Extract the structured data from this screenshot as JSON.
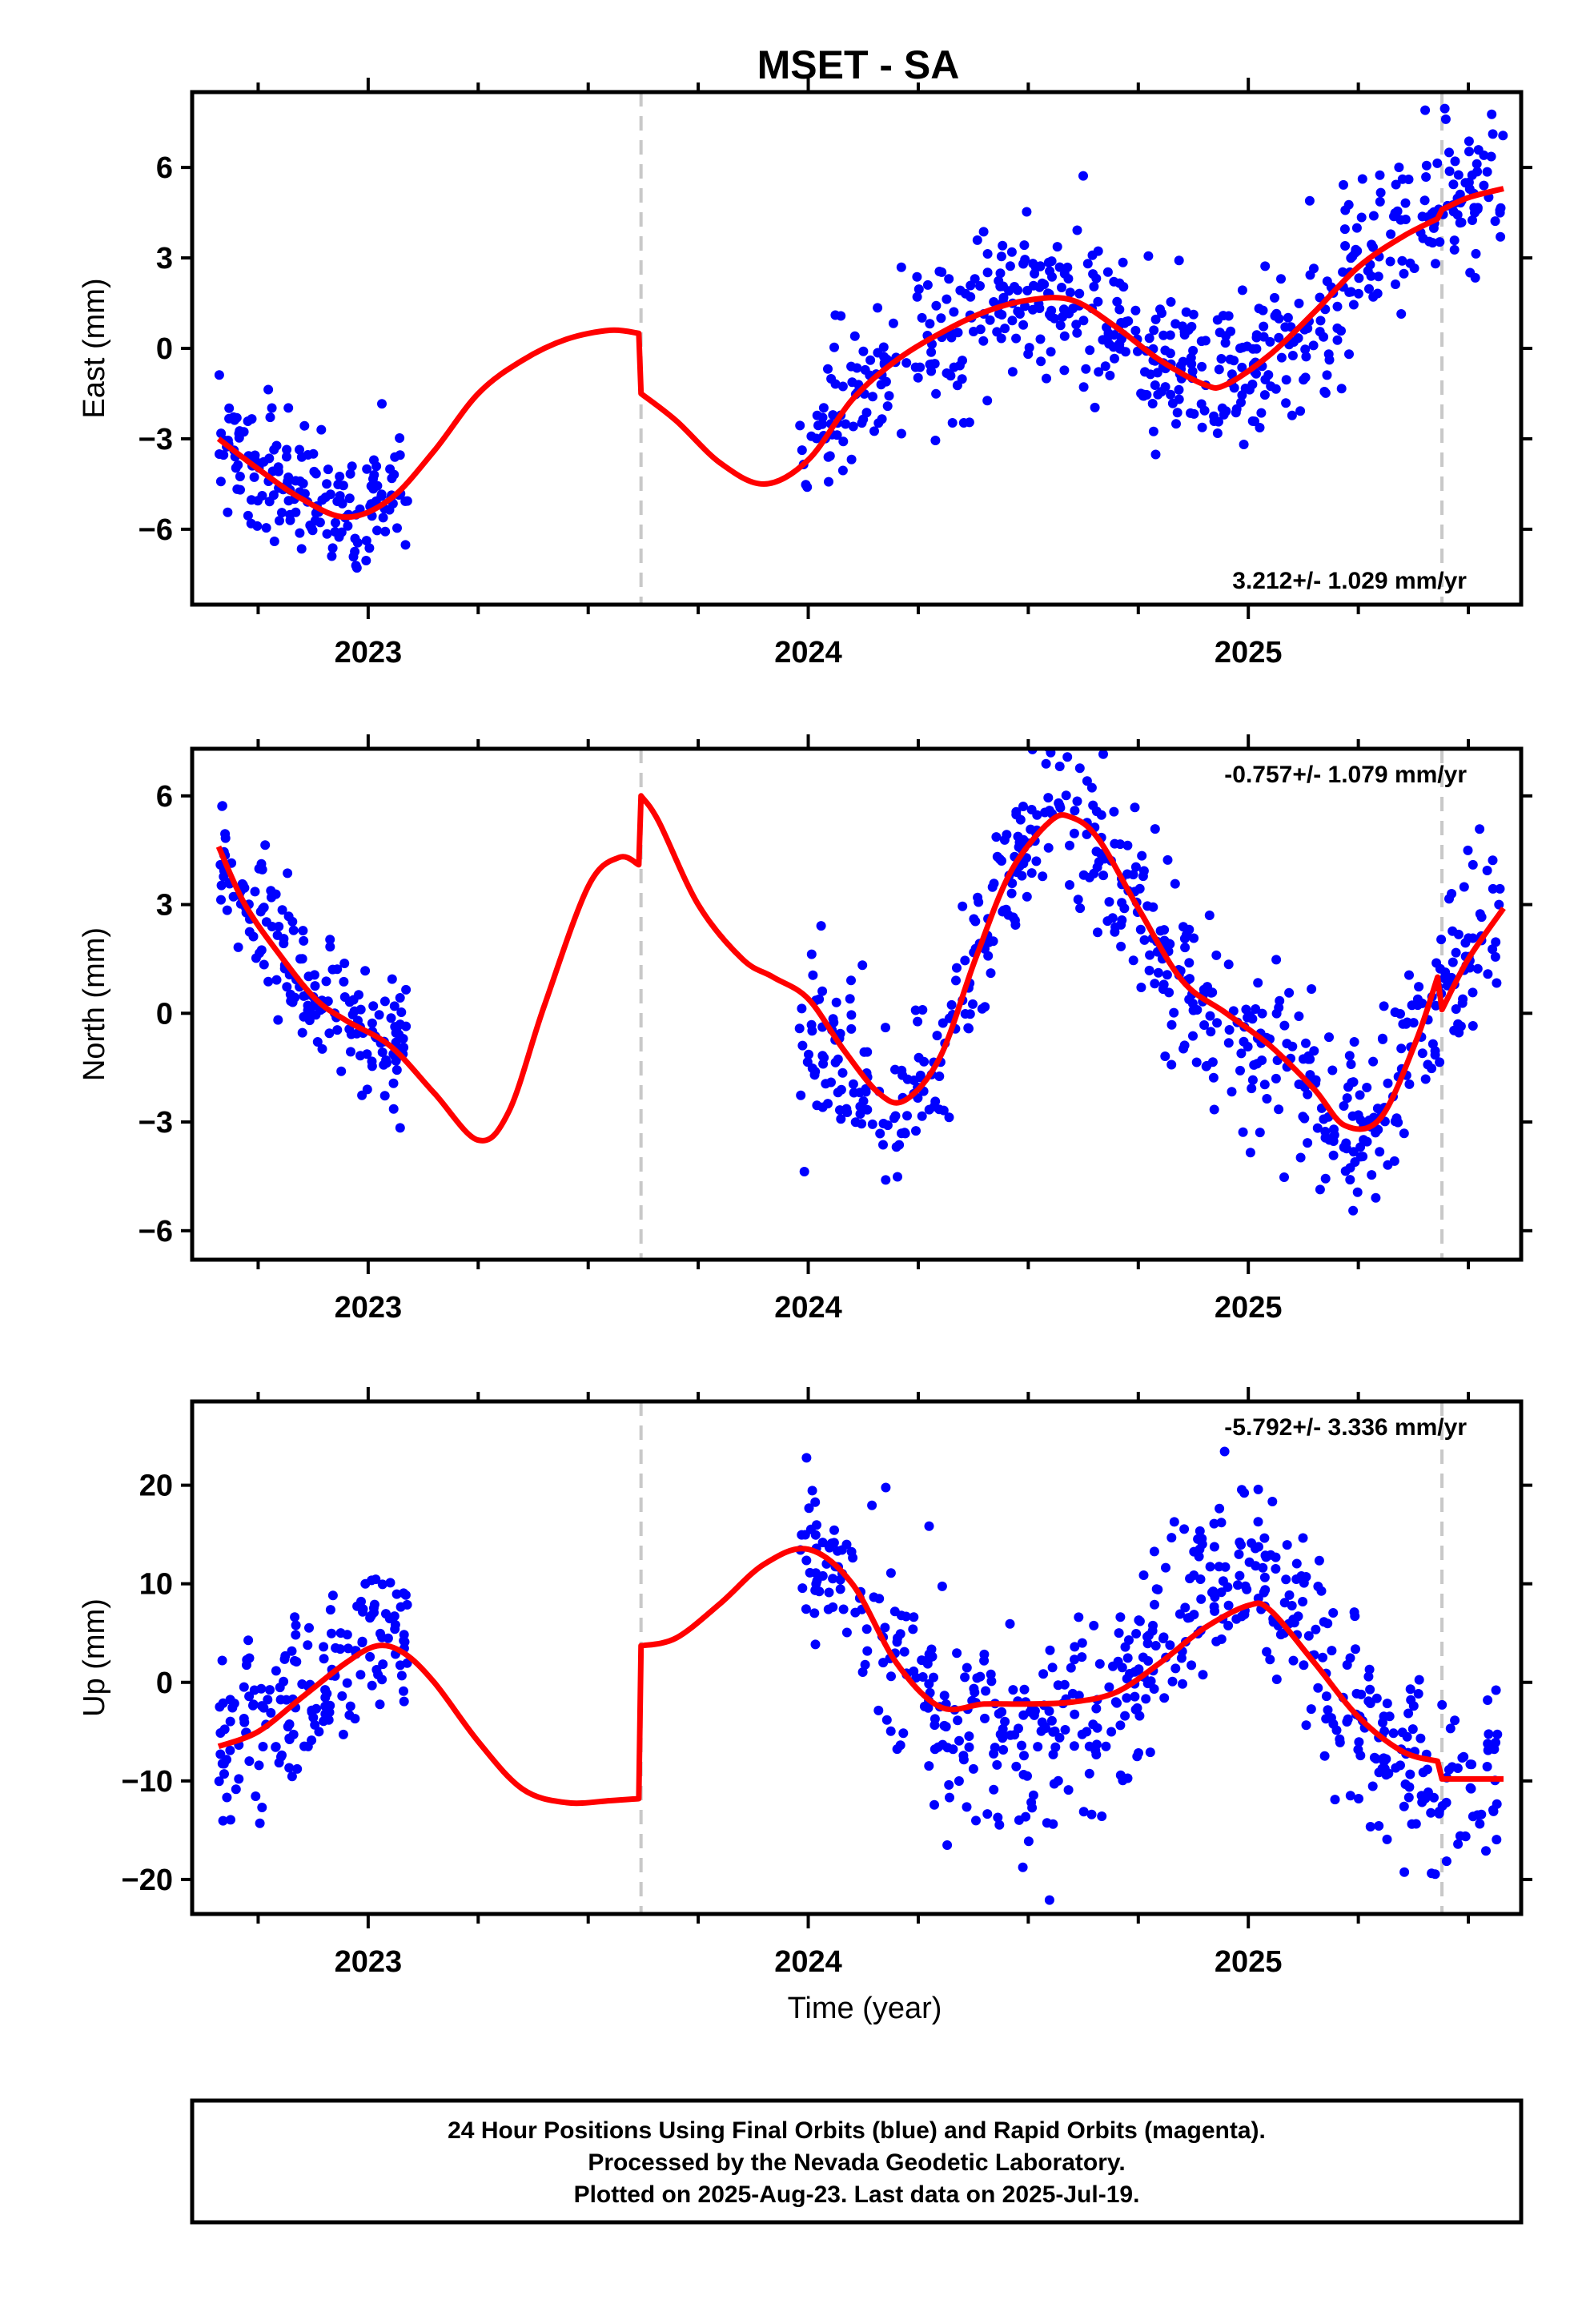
{
  "title": "MSET - SA",
  "footer": {
    "lines": [
      "24 Hour Positions Using Final Orbits (blue) and Rapid Orbits (magenta).",
      "Processed by the Nevada Geodetic Laboratory.",
      "Plotted on 2025-Aug-23. Last data on 2025-Jul-19."
    ]
  },
  "colors": {
    "data": "#0000ff",
    "model": "#ff0000",
    "event_line": "#c8c8c8",
    "frame": "#000000"
  },
  "chart_data": [
    {
      "type": "scatter",
      "ylabel": "East (mm)",
      "xlabel": "",
      "xlim": [
        2022.6,
        2025.62
      ],
      "ylim": [
        -8.5,
        8.5
      ],
      "yticks": [
        -6,
        -3,
        0,
        3,
        6
      ],
      "xticks": [
        2023,
        2024,
        2025
      ],
      "xtick_labels": [
        "2023",
        "2024",
        "2025"
      ],
      "rate_label": "3.212+/- 1.029 mm/yr",
      "rate_position": "bottom-right",
      "event_lines": [
        2023.62,
        2025.44
      ],
      "model": {
        "x": [
          2022.66,
          2022.75,
          2022.85,
          2022.95,
          2023.05,
          2023.15,
          2023.25,
          2023.35,
          2023.45,
          2023.55,
          2023.615,
          2023.62,
          2023.7,
          2023.8,
          2023.9,
          2024.0,
          2024.1,
          2024.2,
          2024.3,
          2024.4,
          2024.5,
          2024.6,
          2024.7,
          2024.8,
          2024.9,
          2024.95,
          2025.05,
          2025.15,
          2025.25,
          2025.35,
          2025.43,
          2025.44,
          2025.5,
          2025.58
        ],
        "y": [
          -3.0,
          -4.0,
          -5.0,
          -5.6,
          -5.0,
          -3.4,
          -1.5,
          -0.4,
          0.3,
          0.6,
          0.5,
          -1.5,
          -2.4,
          -3.8,
          -4.5,
          -3.7,
          -1.7,
          -0.4,
          0.5,
          1.2,
          1.6,
          1.6,
          0.7,
          -0.4,
          -1.2,
          -1.2,
          -0.2,
          1.2,
          2.7,
          3.7,
          4.3,
          4.6,
          5.0,
          5.3
        ]
      },
      "segments": [
        {
          "x0": 2022.66,
          "x1": 2023.09,
          "trend": [
            [
              2022.66,
              -3.0
            ],
            [
              2022.75,
              -4.0
            ],
            [
              2022.85,
              -5.0
            ],
            [
              2022.95,
              -5.6
            ],
            [
              2023.05,
              -5.0
            ],
            [
              2023.09,
              -4.4
            ]
          ],
          "sd": 1.1,
          "n": 170
        },
        {
          "x0": 2023.98,
          "x1": 2025.58,
          "trend": [
            [
              2023.98,
              -3.9
            ],
            [
              2024.1,
              -1.7
            ],
            [
              2024.2,
              -0.4
            ],
            [
              2024.3,
              0.5
            ],
            [
              2024.4,
              1.2
            ],
            [
              2024.5,
              1.6
            ],
            [
              2024.6,
              1.6
            ],
            [
              2024.7,
              0.7
            ],
            [
              2024.8,
              -0.4
            ],
            [
              2024.9,
              -1.2
            ],
            [
              2025.0,
              -0.9
            ],
            [
              2025.1,
              0.4
            ],
            [
              2025.2,
              2.0
            ],
            [
              2025.3,
              3.2
            ],
            [
              2025.4,
              4.1
            ],
            [
              2025.5,
              5.0
            ],
            [
              2025.58,
              5.3
            ]
          ],
          "sd": 1.3,
          "n": 560
        }
      ]
    },
    {
      "type": "scatter",
      "ylabel": "North (mm)",
      "xlabel": "",
      "xlim": [
        2022.6,
        2025.62
      ],
      "ylim": [
        -6.8,
        7.3
      ],
      "yticks": [
        -6,
        -3,
        0,
        3,
        6
      ],
      "xticks": [
        2023,
        2024,
        2025
      ],
      "xtick_labels": [
        "2023",
        "2024",
        "2025"
      ],
      "rate_label": "-0.757+/- 1.079 mm/yr",
      "rate_position": "top-right",
      "event_lines": [
        2023.62,
        2025.44
      ],
      "model": {
        "x": [
          2022.66,
          2022.72,
          2022.8,
          2022.88,
          2022.95,
          2023.05,
          2023.15,
          2023.25,
          2023.32,
          2023.4,
          2023.5,
          2023.57,
          2023.615,
          2023.62,
          2023.66,
          2023.75,
          2023.85,
          2023.92,
          2024.0,
          2024.08,
          2024.16,
          2024.22,
          2024.3,
          2024.38,
          2024.46,
          2024.55,
          2024.6,
          2024.66,
          2024.75,
          2024.85,
          2024.95,
          2025.05,
          2025.15,
          2025.22,
          2025.3,
          2025.38,
          2025.43,
          2025.44,
          2025.5,
          2025.58
        ],
        "y": [
          4.6,
          3.0,
          1.6,
          0.4,
          -0.2,
          -0.9,
          -2.2,
          -3.5,
          -2.7,
          0.2,
          3.5,
          4.3,
          4.1,
          6.0,
          5.3,
          3.0,
          1.5,
          1.0,
          0.4,
          -1.0,
          -2.2,
          -2.4,
          -1.2,
          1.5,
          3.9,
          5.3,
          5.4,
          4.8,
          2.9,
          0.9,
          0.0,
          -0.9,
          -2.1,
          -3.1,
          -2.9,
          -0.8,
          1.0,
          0.1,
          1.5,
          2.9
        ]
      },
      "segments": [
        {
          "x0": 2022.66,
          "x1": 2023.09,
          "trend": [
            [
              2022.66,
              4.6
            ],
            [
              2022.72,
              3.0
            ],
            [
              2022.8,
              1.6
            ],
            [
              2022.88,
              0.4
            ],
            [
              2022.95,
              -0.2
            ],
            [
              2023.05,
              -0.9
            ],
            [
              2023.09,
              -1.4
            ]
          ],
          "sd": 0.9,
          "n": 170
        },
        {
          "x0": 2023.98,
          "x1": 2025.58,
          "trend": [
            [
              2023.98,
              -1.3
            ],
            [
              2024.08,
              -1.0
            ],
            [
              2024.16,
              -2.2
            ],
            [
              2024.22,
              -2.4
            ],
            [
              2024.3,
              -1.2
            ],
            [
              2024.38,
              1.5
            ],
            [
              2024.46,
              3.9
            ],
            [
              2024.55,
              5.3
            ],
            [
              2024.6,
              5.4
            ],
            [
              2024.66,
              4.8
            ],
            [
              2024.75,
              2.9
            ],
            [
              2024.85,
              0.9
            ],
            [
              2024.95,
              0.0
            ],
            [
              2025.05,
              -0.9
            ],
            [
              2025.15,
              -2.1
            ],
            [
              2025.22,
              -3.1
            ],
            [
              2025.3,
              -2.9
            ],
            [
              2025.38,
              -0.8
            ],
            [
              2025.45,
              1.0
            ],
            [
              2025.5,
              1.5
            ],
            [
              2025.58,
              2.9
            ]
          ],
          "sd": 1.2,
          "n": 560
        }
      ]
    },
    {
      "type": "scatter",
      "ylabel": "Up (mm)",
      "xlabel": "Time (year)",
      "xlim": [
        2022.6,
        2025.62
      ],
      "ylim": [
        -23.5,
        28.5
      ],
      "yticks": [
        -20,
        -10,
        0,
        10,
        20
      ],
      "xticks": [
        2023,
        2024,
        2025
      ],
      "xtick_labels": [
        "2023",
        "2024",
        "2025"
      ],
      "rate_label": "-5.792+/- 3.336 mm/yr",
      "rate_position": "top-right",
      "event_lines": [
        2023.62,
        2025.44
      ],
      "model": {
        "x": [
          2022.66,
          2022.75,
          2022.85,
          2022.95,
          2023.02,
          2023.08,
          2023.15,
          2023.25,
          2023.35,
          2023.45,
          2023.55,
          2023.615,
          2023.62,
          2023.7,
          2023.8,
          2023.9,
          2024.0,
          2024.1,
          2024.2,
          2024.3,
          2024.4,
          2024.5,
          2024.6,
          2024.7,
          2024.8,
          2024.9,
          2025.0,
          2025.05,
          2025.15,
          2025.25,
          2025.35,
          2025.43,
          2025.44,
          2025.58
        ],
        "y": [
          -6.5,
          -5.0,
          -1.5,
          2.0,
          3.7,
          3.0,
          0.0,
          -6.0,
          -10.8,
          -12.2,
          -12.0,
          -11.8,
          3.7,
          4.5,
          8.0,
          12.0,
          13.5,
          10.0,
          2.0,
          -2.5,
          -2.2,
          -2.2,
          -2.0,
          -1.0,
          2.0,
          5.5,
          7.8,
          7.3,
          2.0,
          -3.5,
          -7.0,
          -8.0,
          -9.8,
          -9.8
        ]
      },
      "segments": [
        {
          "x0": 2022.66,
          "x1": 2023.09,
          "trend": [
            [
              2022.66,
              -6.5
            ],
            [
              2022.75,
              -5.0
            ],
            [
              2022.85,
              -1.5
            ],
            [
              2022.95,
              2.0
            ],
            [
              2023.02,
              3.7
            ],
            [
              2023.09,
              4.5
            ]
          ],
          "sd": 4.2,
          "n": 170
        },
        {
          "x0": 2023.98,
          "x1": 2025.58,
          "trend": [
            [
              2023.98,
              14.5
            ],
            [
              2024.1,
              10.0
            ],
            [
              2024.2,
              2.0
            ],
            [
              2024.3,
              -2.5
            ],
            [
              2024.4,
              -5.5
            ],
            [
              2024.5,
              -6.5
            ],
            [
              2024.6,
              -5.0
            ],
            [
              2024.7,
              -2.5
            ],
            [
              2024.8,
              3.0
            ],
            [
              2024.9,
              9.0
            ],
            [
              2025.0,
              11.0
            ],
            [
              2025.1,
              8.0
            ],
            [
              2025.2,
              0.0
            ],
            [
              2025.3,
              -6.0
            ],
            [
              2025.4,
              -9.0
            ],
            [
              2025.5,
              -11.0
            ],
            [
              2025.58,
              -10.0
            ]
          ],
          "sd": 4.8,
          "n": 560
        }
      ]
    }
  ]
}
